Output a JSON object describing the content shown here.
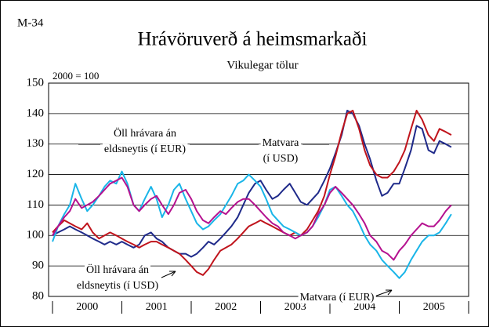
{
  "chart_data": {
    "type": "line",
    "figure_label": "M-34",
    "title": "Hrávöruverð á heimsmarkaði",
    "subtitle": "Vikulegar tölur",
    "ylabel": "2000 = 100",
    "ylim": [
      80,
      150
    ],
    "yticks": [
      80,
      90,
      100,
      110,
      120,
      130,
      140,
      150
    ],
    "grid": true,
    "xlim": [
      2000,
      2006
    ],
    "xticks": [
      2000,
      2001,
      2002,
      2003,
      2004,
      2005,
      2006
    ],
    "categories": [
      "2000",
      "2001",
      "2002",
      "2003",
      "2004",
      "2005"
    ],
    "x": [
      2000,
      2000.08,
      2000.17,
      2000.25,
      2000.33,
      2000.42,
      2000.5,
      2000.58,
      2000.67,
      2000.75,
      2000.83,
      2000.92,
      2001,
      2001.08,
      2001.17,
      2001.25,
      2001.33,
      2001.42,
      2001.5,
      2001.58,
      2001.67,
      2001.75,
      2001.83,
      2001.92,
      2002,
      2002.08,
      2002.17,
      2002.25,
      2002.33,
      2002.42,
      2002.5,
      2002.58,
      2002.67,
      2002.75,
      2002.83,
      2002.92,
      2003,
      2003.08,
      2003.17,
      2003.25,
      2003.33,
      2003.42,
      2003.5,
      2003.58,
      2003.67,
      2003.75,
      2003.83,
      2003.92,
      2004,
      2004.08,
      2004.17,
      2004.25,
      2004.33,
      2004.42,
      2004.5,
      2004.58,
      2004.67,
      2004.75,
      2004.83,
      2004.92,
      2005,
      2005.08,
      2005.17,
      2005.25,
      2005.33,
      2005.42,
      2005.5,
      2005.58,
      2005.67,
      2005.75
    ],
    "series": [
      {
        "name": [
          "Matvara",
          "(í USD)"
        ],
        "color": "#1f2a8a",
        "values": [
          100,
          101,
          102,
          103,
          102,
          101,
          100,
          99,
          98,
          97,
          98,
          97,
          98,
          97,
          96,
          97,
          100,
          101,
          99,
          98,
          96,
          95,
          94,
          94,
          93,
          94,
          96,
          98,
          97,
          99,
          101,
          103,
          106,
          110,
          114,
          117,
          118,
          115,
          112,
          113,
          115,
          117,
          114,
          111,
          110,
          112,
          114,
          118,
          122,
          127,
          133,
          141,
          140,
          136,
          130,
          125,
          118,
          113,
          114,
          117,
          117,
          122,
          128,
          136,
          135,
          128,
          127,
          131,
          130,
          129
        ]
      },
      {
        "name": [
          "Öll hrávara án",
          "eldsneytis (í USD)"
        ],
        "color": "#c0141c",
        "values": [
          101,
          103,
          105,
          104,
          103,
          102,
          104,
          101,
          99,
          100,
          101,
          100,
          99,
          98,
          97,
          96,
          97,
          98,
          98,
          97,
          96,
          95,
          94,
          92,
          90,
          88,
          87,
          89,
          92,
          95,
          96,
          97,
          99,
          101,
          103,
          104,
          105,
          104,
          103,
          102,
          101,
          100,
          101,
          100,
          102,
          105,
          108,
          113,
          120,
          126,
          134,
          140,
          141,
          135,
          128,
          123,
          120,
          119,
          119,
          121,
          124,
          128,
          135,
          141,
          138,
          133,
          131,
          135,
          134,
          133
        ]
      },
      {
        "name": [
          "Matvara (í EUR)"
        ],
        "color": "#19b5e8",
        "values": [
          98,
          103,
          107,
          110,
          117,
          112,
          108,
          110,
          113,
          116,
          118,
          117,
          121,
          117,
          110,
          108,
          112,
          116,
          112,
          106,
          110,
          115,
          117,
          112,
          108,
          104,
          102,
          103,
          105,
          107,
          110,
          113,
          117,
          118,
          120,
          118,
          116,
          112,
          107,
          105,
          103,
          102,
          101,
          100,
          101,
          103,
          106,
          110,
          115,
          116,
          113,
          110,
          108,
          104,
          100,
          97,
          95,
          92,
          90,
          88,
          86,
          88,
          92,
          95,
          98,
          100,
          100,
          101,
          104,
          107
        ]
      },
      {
        "name": [
          "Öll hrávara án",
          "eldsneytis (í EUR)"
        ],
        "color": "#b5118f",
        "values": [
          100,
          103,
          106,
          108,
          112,
          109,
          110,
          111,
          113,
          115,
          117,
          118,
          119,
          116,
          110,
          108,
          110,
          112,
          113,
          110,
          107,
          110,
          114,
          115,
          112,
          108,
          105,
          104,
          106,
          108,
          107,
          109,
          111,
          112,
          112,
          110,
          108,
          106,
          104,
          103,
          101,
          100,
          99,
          100,
          101,
          103,
          107,
          110,
          114,
          116,
          114,
          112,
          110,
          107,
          104,
          100,
          98,
          95,
          94,
          92,
          95,
          97,
          100,
          102,
          104,
          103,
          103,
          105,
          108,
          110
        ]
      }
    ]
  }
}
